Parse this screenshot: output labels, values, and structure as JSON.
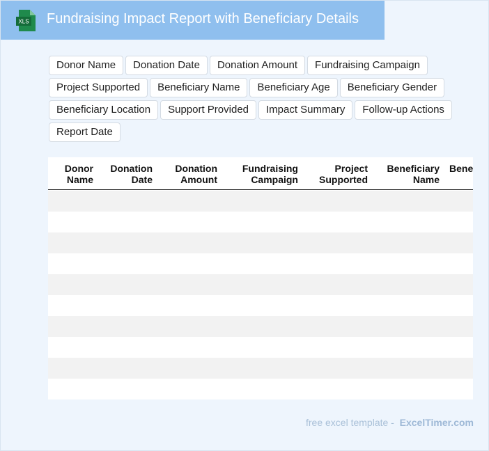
{
  "header": {
    "icon_label": "XLS",
    "title": "Fundraising Impact Report with Beneficiary Details"
  },
  "fields": [
    "Donor Name",
    "Donation Date",
    "Donation Amount",
    "Fundraising Campaign",
    "Project Supported",
    "Beneficiary Name",
    "Beneficiary Age",
    "Beneficiary Gender",
    "Beneficiary Location",
    "Support Provided",
    "Impact Summary",
    "Follow-up Actions",
    "Report Date"
  ],
  "table": {
    "columns": [
      "Donor Name",
      "Donation Date",
      "Donation Amount",
      "Fundraising Campaign",
      "Project Supported",
      "Beneficiary Name",
      "Beneficiary Age"
    ]
  },
  "footer": {
    "text": "free excel template -",
    "brand": "ExcelTimer.com"
  }
}
